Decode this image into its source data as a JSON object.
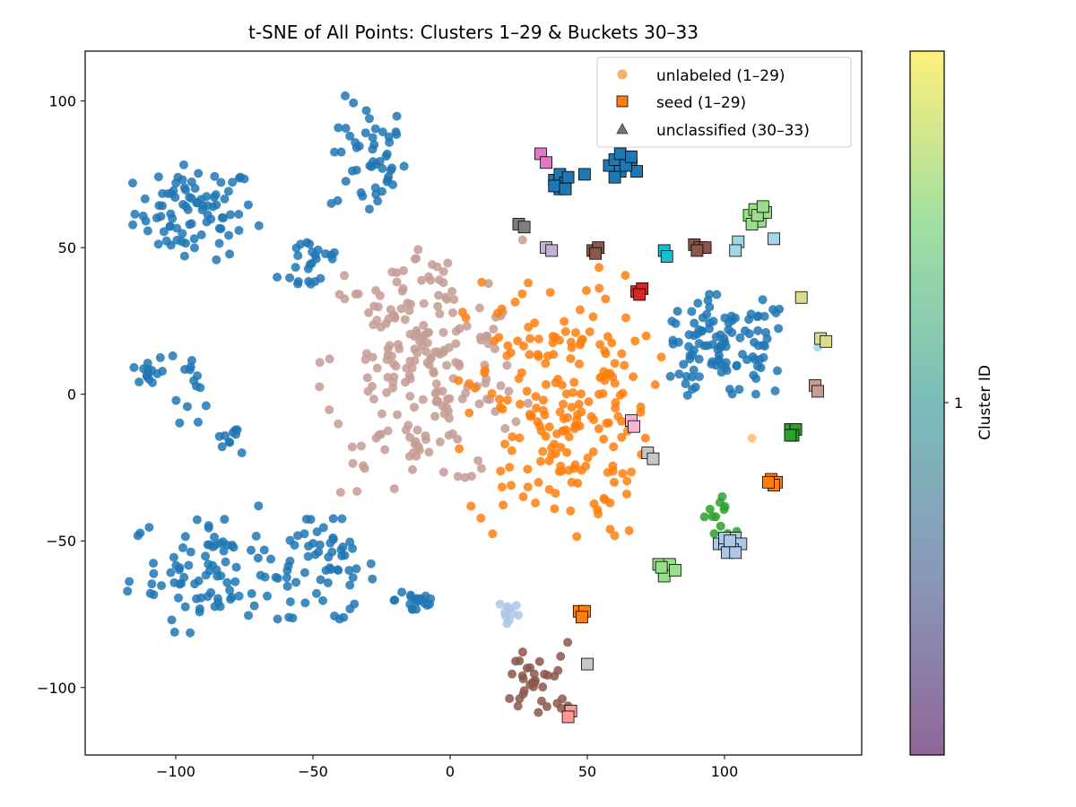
{
  "chart_data": {
    "type": "scatter",
    "title": "t-SNE of All Points: Clusters 1–29 & Buckets 30–33",
    "xlabel": "",
    "ylabel": "",
    "xlim": [
      -133,
      150
    ],
    "ylim": [
      -123,
      117
    ],
    "xticks": [
      -100,
      -50,
      0,
      50,
      100
    ],
    "yticks": [
      -100,
      -50,
      0,
      50,
      100
    ],
    "xtick_labels": [
      "−100",
      "−50",
      "0",
      "50",
      "100"
    ],
    "ytick_labels": [
      "−100",
      "−50",
      "0",
      "50",
      "100"
    ],
    "grid": false,
    "legend": {
      "placement": "top-right",
      "entries": [
        {
          "label": "unlabeled (1–29)",
          "marker": "circle",
          "color": "#f49c4a"
        },
        {
          "label": "seed (1–29)",
          "marker": "square",
          "color": "#ff7f0e"
        },
        {
          "label": "unclassified (30–33)",
          "marker": "triangle",
          "color": "#555555"
        }
      ]
    },
    "colorbar": {
      "label": "Cluster ID",
      "tick_values": [
        1
      ],
      "tick_labels": [
        "1"
      ],
      "colors": [
        "#440154",
        "#3b528b",
        "#21918c",
        "#5ec962",
        "#fde725"
      ],
      "alpha": 0.6
    },
    "unlabeled_clusters": [
      {
        "color": "#1f77b4",
        "generator": "blob",
        "regions": [
          {
            "cx": -93,
            "cy": 62,
            "rx": 22,
            "ry": 16,
            "n": 85
          },
          {
            "cx": -30,
            "cy": 80,
            "rx": 14,
            "ry": 20,
            "n": 50
          },
          {
            "cx": -50,
            "cy": 45,
            "rx": 12,
            "ry": 12,
            "n": 25
          },
          {
            "cx": -110,
            "cy": 8,
            "rx": 6,
            "ry": 6,
            "n": 14
          },
          {
            "cx": -95,
            "cy": 5,
            "rx": 7,
            "ry": 14,
            "n": 14
          },
          {
            "cx": -80,
            "cy": -15,
            "rx": 6,
            "ry": 5,
            "n": 10
          },
          {
            "cx": -85,
            "cy": -60,
            "rx": 32,
            "ry": 20,
            "n": 95
          },
          {
            "cx": -45,
            "cy": -60,
            "rx": 18,
            "ry": 18,
            "n": 50
          },
          {
            "cx": -12,
            "cy": -70,
            "rx": 8,
            "ry": 6,
            "n": 20
          },
          {
            "cx": 100,
            "cy": 15,
            "rx": 25,
            "ry": 18,
            "n": 110
          }
        ]
      },
      {
        "color": "#c49c94",
        "generator": "blob",
        "regions": [
          {
            "cx": -10,
            "cy": 10,
            "rx": 36,
            "ry": 42,
            "n": 210
          }
        ]
      },
      {
        "color": "#ff7f0e",
        "generator": "blob",
        "regions": [
          {
            "cx": 40,
            "cy": -5,
            "rx": 34,
            "ry": 45,
            "n": 210
          }
        ]
      },
      {
        "color": "#8c564b",
        "generator": "blob",
        "regions": [
          {
            "cx": 32,
            "cy": -98,
            "rx": 13,
            "ry": 13,
            "n": 34
          }
        ]
      },
      {
        "color": "#2ca02c",
        "generator": "blob",
        "regions": [
          {
            "cx": 98,
            "cy": -42,
            "rx": 6,
            "ry": 10,
            "n": 12
          }
        ]
      },
      {
        "color": "#aec7e8",
        "generator": "blob",
        "regions": [
          {
            "cx": 22,
            "cy": -74,
            "rx": 4,
            "ry": 4,
            "n": 10
          }
        ]
      },
      {
        "color": "#9edae5",
        "generator": "fixed",
        "points": [
          [
            134,
            16
          ]
        ]
      },
      {
        "color": "#ffbb78",
        "generator": "fixed",
        "points": [
          [
            110,
            -15
          ]
        ]
      }
    ],
    "seed_clusters": [
      {
        "color": "#e377c2",
        "points": [
          [
            33,
            82
          ],
          [
            35,
            79
          ]
        ]
      },
      {
        "color": "#1f77b4",
        "points": [
          [
            38,
            73
          ],
          [
            40,
            75
          ],
          [
            42,
            72
          ],
          [
            40,
            70
          ],
          [
            43,
            74
          ],
          [
            38,
            71
          ],
          [
            42,
            70
          ],
          [
            49,
            75
          ],
          [
            58,
            78
          ],
          [
            60,
            80
          ],
          [
            62,
            76
          ],
          [
            64,
            80
          ],
          [
            66,
            78
          ],
          [
            60,
            74
          ],
          [
            68,
            76
          ],
          [
            62,
            82
          ],
          [
            64,
            78
          ],
          [
            66,
            81
          ]
        ]
      },
      {
        "color": "#98df8a",
        "points": [
          [
            109,
            61
          ],
          [
            111,
            63
          ],
          [
            113,
            59
          ],
          [
            115,
            62
          ],
          [
            110,
            58
          ],
          [
            112,
            61
          ],
          [
            114,
            64
          ],
          [
            76,
            -58
          ],
          [
            78,
            -60
          ],
          [
            80,
            -58
          ],
          [
            78,
            -62
          ],
          [
            82,
            -60
          ],
          [
            77,
            -59
          ]
        ]
      },
      {
        "color": "#7f7f7f",
        "points": [
          [
            25,
            58
          ],
          [
            27,
            57
          ]
        ]
      },
      {
        "color": "#c5b0d5",
        "points": [
          [
            35,
            50
          ],
          [
            37,
            49
          ]
        ]
      },
      {
        "color": "#8c564b",
        "points": [
          [
            52,
            49
          ],
          [
            54,
            50
          ],
          [
            53,
            48
          ],
          [
            89,
            51
          ],
          [
            91,
            50
          ],
          [
            93,
            50
          ],
          [
            90,
            49
          ]
        ]
      },
      {
        "color": "#17becf",
        "points": [
          [
            78,
            49
          ],
          [
            79,
            47
          ]
        ]
      },
      {
        "color": "#9edae5",
        "points": [
          [
            105,
            52
          ],
          [
            104,
            49
          ],
          [
            118,
            53
          ]
        ]
      },
      {
        "color": "#d62728",
        "points": [
          [
            68,
            35
          ],
          [
            70,
            36
          ],
          [
            69,
            34
          ]
        ]
      },
      {
        "color": "#dbdb8d",
        "points": [
          [
            128,
            33
          ],
          [
            135,
            19
          ],
          [
            137,
            18
          ]
        ]
      },
      {
        "color": "#c49c94",
        "points": [
          [
            133,
            3
          ],
          [
            134,
            1
          ]
        ]
      },
      {
        "color": "#f7b6d2",
        "points": [
          [
            66,
            -9
          ],
          [
            67,
            -11
          ]
        ]
      },
      {
        "color": "#2ca02c",
        "points": [
          [
            124,
            -12
          ],
          [
            126,
            -12
          ],
          [
            125,
            -14
          ],
          [
            124,
            -14
          ]
        ]
      },
      {
        "color": "#c7c7c7",
        "points": [
          [
            72,
            -20
          ],
          [
            74,
            -22
          ],
          [
            50,
            -92
          ]
        ]
      },
      {
        "color": "#ff7f0e",
        "points": [
          [
            117,
            -29
          ],
          [
            119,
            -30
          ],
          [
            118,
            -31
          ],
          [
            116,
            -30
          ],
          [
            47,
            -74
          ],
          [
            49,
            -74
          ],
          [
            48,
            -76
          ]
        ]
      },
      {
        "color": "#aec7e8",
        "points": [
          [
            98,
            -51
          ],
          [
            100,
            -51
          ],
          [
            102,
            -52
          ],
          [
            104,
            -49
          ],
          [
            106,
            -51
          ],
          [
            103,
            -53
          ],
          [
            101,
            -54
          ],
          [
            100,
            -49
          ],
          [
            104,
            -54
          ],
          [
            102,
            -50
          ]
        ]
      },
      {
        "color": "#ff9896",
        "points": [
          [
            44,
            -108
          ],
          [
            43,
            -110
          ]
        ]
      }
    ],
    "unclassified": []
  }
}
